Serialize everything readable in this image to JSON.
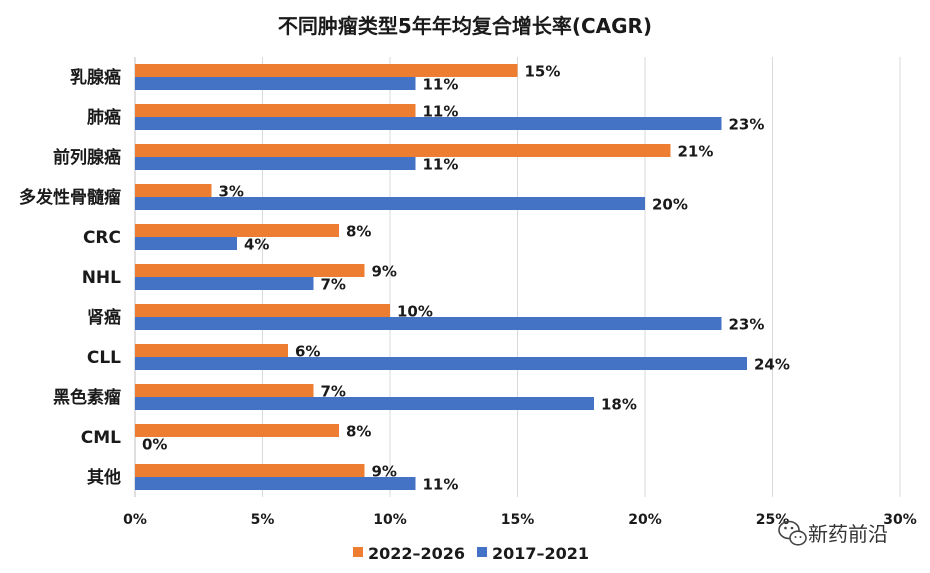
{
  "chart_data": {
    "type": "bar",
    "orientation": "horizontal",
    "title": "不同肿瘤类型5年年均复合增长率(CAGR)",
    "categories": [
      "乳腺癌",
      "肺癌",
      "前列腺癌",
      "多发性骨髓瘤",
      "CRC",
      "NHL",
      "肾癌",
      "CLL",
      "黑色素瘤",
      "CML",
      "其他"
    ],
    "series": [
      {
        "name": "2022–2026",
        "color": "#ED7D31",
        "values": [
          15,
          11,
          21,
          3,
          8,
          9,
          10,
          6,
          7,
          8,
          9
        ]
      },
      {
        "name": "2017–2021",
        "color": "#4472C4",
        "values": [
          11,
          23,
          11,
          20,
          4,
          7,
          23,
          24,
          18,
          0,
          11
        ]
      }
    ],
    "value_suffix": "%",
    "xlim": [
      0,
      30
    ],
    "x_ticks": [
      0,
      5,
      10,
      15,
      20,
      25,
      30
    ],
    "x_tick_labels": [
      "0%",
      "5%",
      "10%",
      "15%",
      "20%",
      "25%",
      "30%"
    ],
    "grid": "vertical",
    "legend_position": "bottom"
  },
  "watermark": {
    "text": "新药前沿",
    "icon": "wechat-icon"
  }
}
